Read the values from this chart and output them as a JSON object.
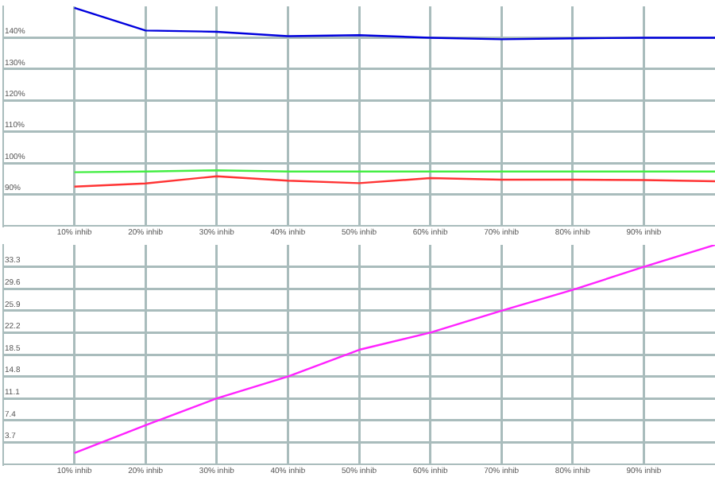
{
  "chart_data": [
    {
      "type": "line",
      "x": [
        10,
        20,
        30,
        40,
        50,
        60,
        70,
        80,
        90,
        100
      ],
      "xlim": [
        0,
        100
      ],
      "xticks": [
        {
          "value": 10,
          "label": "10% inhib"
        },
        {
          "value": 20,
          "label": "20% inhib"
        },
        {
          "value": 30,
          "label": "30% inhib"
        },
        {
          "value": 40,
          "label": "40% inhib"
        },
        {
          "value": 50,
          "label": "50% inhib"
        },
        {
          "value": 60,
          "label": "60% inhib"
        },
        {
          "value": 70,
          "label": "70% inhib"
        },
        {
          "value": 80,
          "label": "80% inhib"
        },
        {
          "value": 90,
          "label": "90% inhib"
        }
      ],
      "ylim": [
        80,
        150
      ],
      "yticks": [
        {
          "value": 90,
          "label": "90%"
        },
        {
          "value": 100,
          "label": "100%"
        },
        {
          "value": 110,
          "label": "110%"
        },
        {
          "value": 120,
          "label": "120%"
        },
        {
          "value": 130,
          "label": "130%"
        },
        {
          "value": 140,
          "label": "140%"
        }
      ],
      "grid": true,
      "legend": false,
      "marker": "none",
      "series": [
        {
          "color": "#0000dd",
          "values": [
            149.5,
            142.3,
            141.9,
            140.5,
            140.8,
            140,
            139.5,
            139.8,
            140,
            140
          ]
        },
        {
          "color": "#44ee44",
          "values": [
            97.1,
            97.3,
            97.7,
            97.3,
            97.3,
            97.3,
            97.3,
            97.3,
            97.3,
            97.3
          ]
        },
        {
          "color": "#ff3333",
          "values": [
            92.5,
            93.5,
            95.8,
            94.4,
            93.6,
            95.2,
            94.7,
            94.7,
            94.6,
            94.2
          ]
        }
      ]
    },
    {
      "type": "line",
      "x": [
        10,
        20,
        30,
        40,
        50,
        60,
        70,
        80,
        90,
        100
      ],
      "xlim": [
        0,
        100
      ],
      "xticks": [
        {
          "value": 10,
          "label": "10% inhib"
        },
        {
          "value": 20,
          "label": "20% inhib"
        },
        {
          "value": 30,
          "label": "30% inhib"
        },
        {
          "value": 40,
          "label": "40% inhib"
        },
        {
          "value": 50,
          "label": "50% inhib"
        },
        {
          "value": 60,
          "label": "60% inhib"
        },
        {
          "value": 70,
          "label": "70% inhib"
        },
        {
          "value": 80,
          "label": "80% inhib"
        },
        {
          "value": 90,
          "label": "90% inhib"
        }
      ],
      "ylim": [
        0,
        37
      ],
      "yticks": [
        3.7,
        7.4,
        11.1,
        14.8,
        18.5,
        22.2,
        25.9,
        29.6,
        33.3
      ],
      "grid": true,
      "legend": false,
      "marker": "none",
      "series": [
        {
          "color": "#ff22ff",
          "values": [
            1.9,
            6.6,
            11.1,
            14.8,
            19.3,
            22.2,
            25.9,
            29.4,
            33.3,
            37
          ]
        }
      ]
    }
  ]
}
